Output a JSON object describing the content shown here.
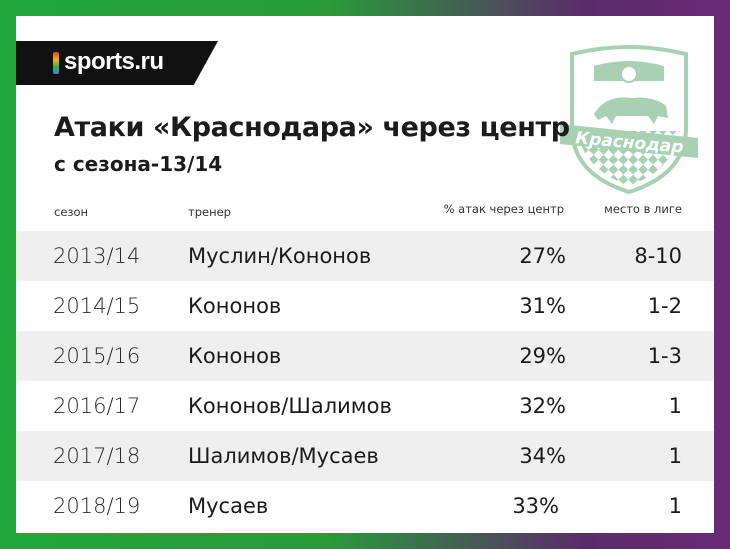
{
  "brand": {
    "name": "sports.ru"
  },
  "title": "Атаки «Краснодара» через центр",
  "subtitle": "с сезона-13/14",
  "columns": {
    "season": "сезон",
    "coach": "тренер",
    "pct": "% атак через центр",
    "place": "место в лиге"
  },
  "rows": [
    {
      "season": "2013/14",
      "coach": "Муслин/Кононов",
      "pct": "27%",
      "place": "8-10"
    },
    {
      "season": "2014/15",
      "coach": "Кононов",
      "pct": "31%",
      "place": "1-2"
    },
    {
      "season": "2015/16",
      "coach": "Кононов",
      "pct": "29%",
      "place": "1-3"
    },
    {
      "season": "2016/17",
      "coach": "Кононов/Шалимов",
      "pct": "32%",
      "place": "1"
    },
    {
      "season": "2017/18",
      "coach": "Шалимов/Мусаев",
      "pct": "34%",
      "place": "1"
    },
    {
      "season": "2018/19",
      "coach": "Мусаев",
      "pct": "33%",
      "place": "1"
    }
  ],
  "crest": {
    "text": "Краснодар",
    "icon": "fc-krasnodar-crest"
  },
  "colors": {
    "frame_left": "#1fa83a",
    "frame_right": "#6b2a78",
    "crest": "#3f9a5a",
    "row_shade": "#efefef"
  }
}
